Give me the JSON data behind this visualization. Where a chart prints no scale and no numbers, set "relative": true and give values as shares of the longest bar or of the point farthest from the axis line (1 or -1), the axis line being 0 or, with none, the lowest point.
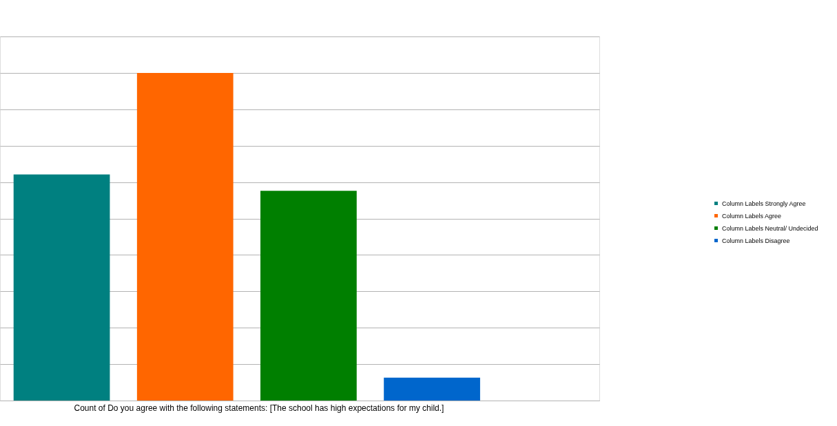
{
  "chart_data": {
    "type": "bar",
    "relative": true,
    "xlabel": "Count of Do you agree with the following statements: [The school has high expectations for my child.]",
    "categories": [
      null
    ],
    "series": [
      {
        "name": "Column Labels Strongly Agree",
        "color": "#008080",
        "values": [
          0.69
        ]
      },
      {
        "name": "Column Labels Agree",
        "color": "#ff6600",
        "values": [
          1
        ]
      },
      {
        "name": "Column Labels Neutral/ Undecided",
        "color": "#007f00",
        "values": [
          0.64
        ]
      },
      {
        "name": "Column Labels Disagree",
        "color": "#0066cc",
        "values": [
          0.07
        ]
      }
    ],
    "grid": "y",
    "legend": "right"
  }
}
